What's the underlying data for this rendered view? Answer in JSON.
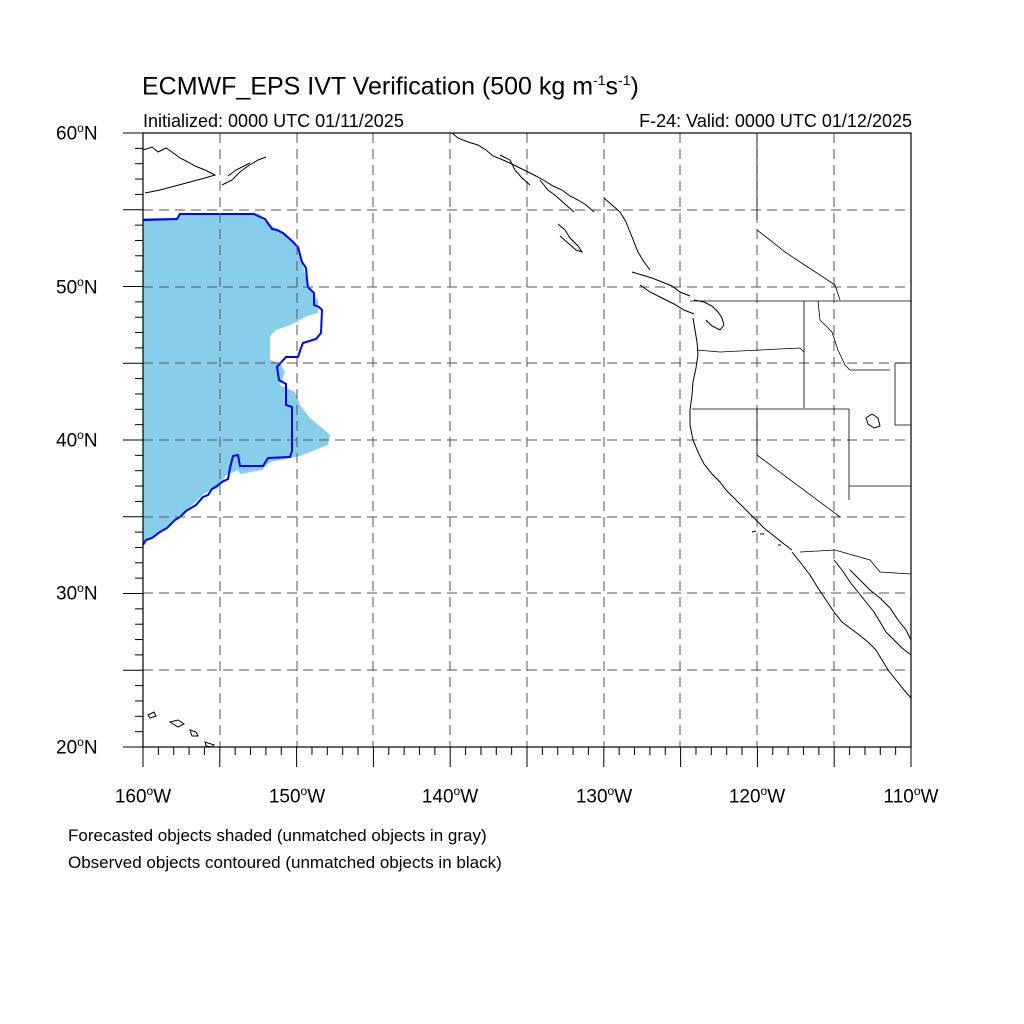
{
  "title": {
    "main": "ECMWF_EPS IVT Verification (500 kg m",
    "sup1": "-1",
    "mid": "s",
    "sup2": "-1",
    "end": ")"
  },
  "subtitle": {
    "initialized": "Initialized: 0000 UTC 01/11/2025",
    "valid": "F-24: Valid: 0000 UTC 01/12/2025"
  },
  "map": {
    "lon_range": [
      -160,
      -110
    ],
    "lat_range": [
      20,
      60
    ],
    "grid": true,
    "lat_labels": [
      {
        "value": 60,
        "text": "60",
        "suffix": "N"
      },
      {
        "value": 50,
        "text": "50",
        "suffix": "N"
      },
      {
        "value": 40,
        "text": "40",
        "suffix": "N"
      },
      {
        "value": 30,
        "text": "30",
        "suffix": "N"
      },
      {
        "value": 20,
        "text": "20",
        "suffix": "N"
      }
    ],
    "lon_labels": [
      {
        "value": -160,
        "text": "160",
        "suffix": "W"
      },
      {
        "value": -150,
        "text": "150",
        "suffix": "W"
      },
      {
        "value": -140,
        "text": "140",
        "suffix": "W"
      },
      {
        "value": -130,
        "text": "130",
        "suffix": "W"
      },
      {
        "value": -120,
        "text": "120",
        "suffix": "W"
      },
      {
        "value": -110,
        "text": "110",
        "suffix": "W"
      }
    ],
    "colors": {
      "forecast_fill": "#87ceeb",
      "observed_contour": "#0000ff",
      "coastline": "#000000",
      "grid": "#555555"
    }
  },
  "notes": {
    "forecast": "Forecasted objects shaded (unmatched objects in gray)",
    "observed": "Observed objects contoured (unmatched objects in black)"
  }
}
